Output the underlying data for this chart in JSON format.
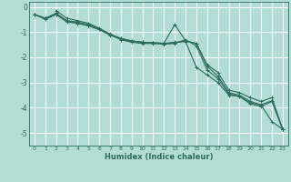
{
  "xlabel": "Humidex (Indice chaleur)",
  "background_color": "#b2ddd4",
  "grid_color": "#ffffff",
  "line_color": "#2d6b5e",
  "xlim": [
    -0.5,
    23.5
  ],
  "ylim": [
    -5.5,
    0.2
  ],
  "xticks": [
    0,
    1,
    2,
    3,
    4,
    5,
    6,
    7,
    8,
    9,
    10,
    11,
    12,
    13,
    14,
    15,
    16,
    17,
    18,
    19,
    20,
    21,
    22,
    23
  ],
  "yticks": [
    0,
    -1,
    -2,
    -3,
    -4,
    -5
  ],
  "lines": [
    {
      "x": [
        0,
        1,
        2,
        3,
        4,
        5,
        6,
        7,
        8,
        9,
        10,
        11,
        12,
        13,
        14,
        15,
        16,
        17,
        18,
        19,
        20,
        21,
        22,
        23
      ],
      "y": [
        -0.3,
        -0.45,
        -0.25,
        -0.55,
        -0.6,
        -0.7,
        -0.85,
        -1.1,
        -1.25,
        -1.35,
        -1.4,
        -1.42,
        -1.45,
        -1.4,
        -1.38,
        -2.4,
        -2.7,
        -3.0,
        -3.5,
        -3.55,
        -3.8,
        -3.9,
        -4.55,
        -4.85
      ]
    },
    {
      "x": [
        0,
        1,
        2,
        3,
        4,
        5,
        6,
        7,
        8,
        9,
        10,
        11,
        12,
        13,
        14,
        15,
        16,
        17,
        18,
        19,
        20,
        21,
        22,
        23
      ],
      "y": [
        -0.3,
        -0.45,
        -0.3,
        -0.55,
        -0.65,
        -0.75,
        -0.9,
        -1.1,
        -1.3,
        -1.4,
        -1.45,
        -1.45,
        -1.48,
        -1.45,
        -1.3,
        -1.55,
        -2.5,
        -2.85,
        -3.45,
        -3.55,
        -3.85,
        -3.95,
        -3.75,
        -4.85
      ]
    },
    {
      "x": [
        0,
        1,
        2,
        3,
        4,
        5,
        6,
        7,
        8,
        9,
        10,
        11,
        12,
        13,
        14,
        15,
        16,
        17,
        18,
        19,
        20,
        21,
        22,
        23
      ],
      "y": [
        -0.3,
        -0.5,
        -0.3,
        -0.6,
        -0.65,
        -0.75,
        -0.9,
        -1.12,
        -1.28,
        -1.38,
        -1.42,
        -1.44,
        -1.46,
        -1.42,
        -1.35,
        -1.45,
        -2.35,
        -2.75,
        -3.4,
        -3.5,
        -3.75,
        -3.88,
        -3.72,
        -4.85
      ]
    },
    {
      "x": [
        2,
        3,
        4,
        5,
        6,
        7,
        8,
        9,
        10,
        11,
        12,
        13,
        14,
        15,
        16,
        17,
        18,
        19,
        20,
        21,
        22,
        23
      ],
      "y": [
        -0.15,
        -0.45,
        -0.55,
        -0.65,
        -0.85,
        -1.08,
        -1.25,
        -1.35,
        -1.4,
        -1.42,
        -1.44,
        -0.7,
        -1.35,
        -1.45,
        -2.3,
        -2.6,
        -3.3,
        -3.4,
        -3.6,
        -3.75,
        -3.6,
        -4.85
      ]
    }
  ]
}
